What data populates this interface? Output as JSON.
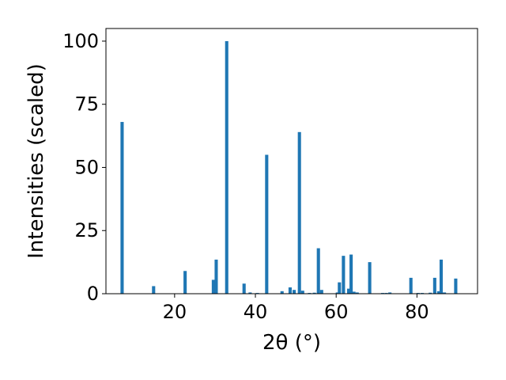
{
  "chart_data": {
    "type": "bar",
    "xlabel": "2θ (°)",
    "ylabel": "Intensities (scaled)",
    "xlim": [
      3,
      95
    ],
    "ylim": [
      0,
      105
    ],
    "x_ticks": [
      20,
      40,
      60,
      80
    ],
    "y_ticks": [
      0,
      25,
      50,
      75,
      100
    ],
    "bar_width": 0.8,
    "bar_color": "#1f77b4",
    "x": [
      7.0,
      14.8,
      22.6,
      29.6,
      30.3,
      32.9,
      37.2,
      38.7,
      40.5,
      42.8,
      46.6,
      48.6,
      49.6,
      50.9,
      51.7,
      53.4,
      54.6,
      55.6,
      56.4,
      60.3,
      60.8,
      61.8,
      63.1,
      63.7,
      64.4,
      65.2,
      68.3,
      71.5,
      72.4,
      73.3,
      78.5,
      80.3,
      81.3,
      83.3,
      84.4,
      85.4,
      86.0,
      86.8,
      89.6
    ],
    "values": [
      68,
      3,
      9,
      5.5,
      13.5,
      100,
      4,
      0.5,
      0.3,
      55,
      1,
      2.5,
      1.5,
      64,
      1.2,
      0.3,
      0.4,
      18,
      1.5,
      0.5,
      4.5,
      15,
      2,
      15.5,
      0.8,
      0.5,
      12.5,
      0.3,
      0.3,
      0.5,
      6.3,
      0.3,
      0.3,
      0.4,
      6.3,
      1,
      13.5,
      0.5,
      6
    ]
  }
}
